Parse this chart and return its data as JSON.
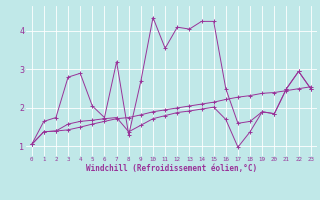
{
  "xlabel": "Windchill (Refroidissement éolien,°C)",
  "bg_color": "#c0e8e8",
  "line_color": "#993399",
  "grid_color": "#ffffff",
  "xlim": [
    -0.5,
    23.5
  ],
  "ylim": [
    0.75,
    4.65
  ],
  "yticks": [
    1,
    2,
    3,
    4
  ],
  "xticks": [
    0,
    1,
    2,
    3,
    4,
    5,
    6,
    7,
    8,
    9,
    10,
    11,
    12,
    13,
    14,
    15,
    16,
    17,
    18,
    19,
    20,
    21,
    22,
    23
  ],
  "series1": [
    [
      0,
      1.05
    ],
    [
      1,
      1.65
    ],
    [
      2,
      1.75
    ],
    [
      3,
      2.8
    ],
    [
      4,
      2.9
    ],
    [
      5,
      2.05
    ],
    [
      6,
      1.75
    ],
    [
      7,
      3.2
    ],
    [
      8,
      1.3
    ],
    [
      9,
      2.7
    ],
    [
      10,
      4.35
    ],
    [
      11,
      3.55
    ],
    [
      12,
      4.1
    ],
    [
      13,
      4.05
    ],
    [
      14,
      4.25
    ],
    [
      15,
      4.25
    ],
    [
      16,
      2.5
    ],
    [
      17,
      1.6
    ],
    [
      18,
      1.65
    ],
    [
      19,
      1.9
    ],
    [
      20,
      1.85
    ],
    [
      21,
      2.5
    ],
    [
      22,
      2.95
    ],
    [
      23,
      2.5
    ]
  ],
  "series2": [
    [
      0,
      1.05
    ],
    [
      1,
      1.38
    ],
    [
      2,
      1.4
    ],
    [
      3,
      1.43
    ],
    [
      4,
      1.5
    ],
    [
      5,
      1.58
    ],
    [
      6,
      1.65
    ],
    [
      7,
      1.72
    ],
    [
      8,
      1.75
    ],
    [
      9,
      1.82
    ],
    [
      10,
      1.9
    ],
    [
      11,
      1.95
    ],
    [
      12,
      2.0
    ],
    [
      13,
      2.05
    ],
    [
      14,
      2.1
    ],
    [
      15,
      2.15
    ],
    [
      16,
      2.22
    ],
    [
      17,
      2.28
    ],
    [
      18,
      2.32
    ],
    [
      19,
      2.38
    ],
    [
      20,
      2.4
    ],
    [
      21,
      2.45
    ],
    [
      22,
      2.5
    ],
    [
      23,
      2.55
    ]
  ],
  "series3": [
    [
      0,
      1.05
    ],
    [
      1,
      1.38
    ],
    [
      2,
      1.4
    ],
    [
      3,
      1.58
    ],
    [
      4,
      1.65
    ],
    [
      5,
      1.68
    ],
    [
      6,
      1.72
    ],
    [
      7,
      1.75
    ],
    [
      8,
      1.38
    ],
    [
      9,
      1.55
    ],
    [
      10,
      1.72
    ],
    [
      11,
      1.8
    ],
    [
      12,
      1.88
    ],
    [
      13,
      1.92
    ],
    [
      14,
      1.97
    ],
    [
      15,
      2.02
    ],
    [
      16,
      1.7
    ],
    [
      17,
      0.98
    ],
    [
      18,
      1.38
    ],
    [
      19,
      1.9
    ],
    [
      20,
      1.85
    ],
    [
      21,
      2.5
    ],
    [
      22,
      2.95
    ],
    [
      23,
      2.5
    ]
  ]
}
